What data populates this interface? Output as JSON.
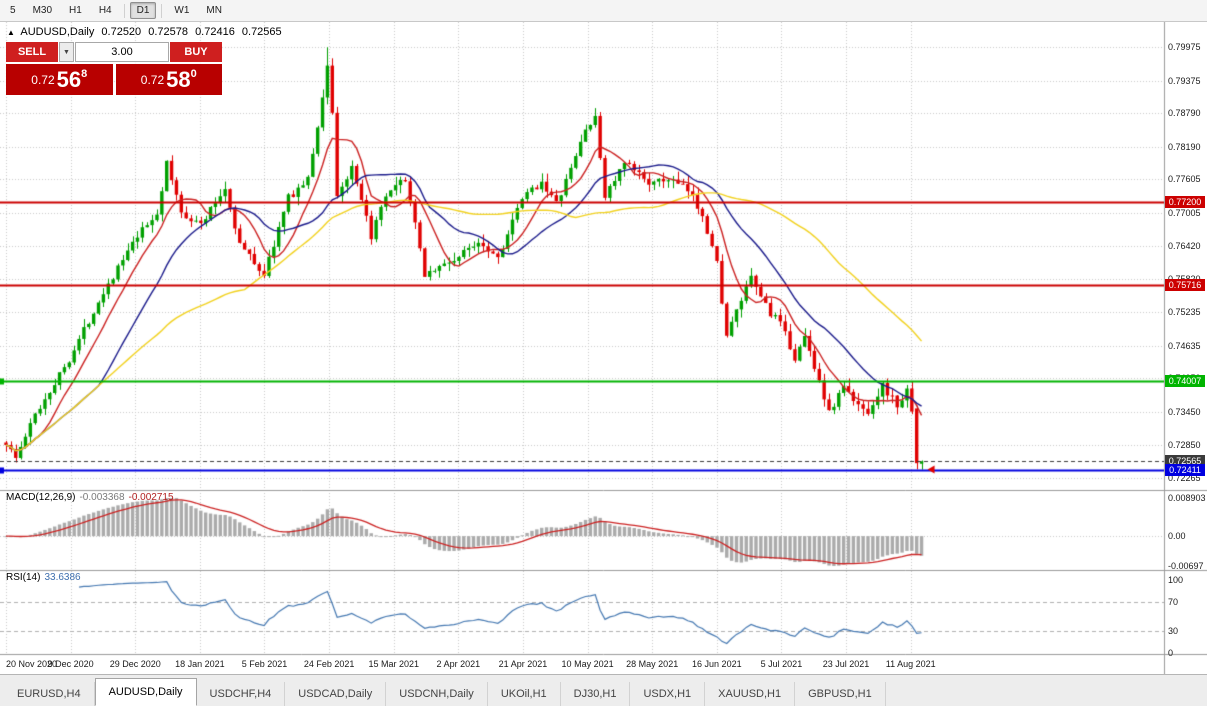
{
  "icons": {
    "expand": "▲",
    "dropdown": "▼"
  },
  "toolbar": {
    "timeframes": [
      "5",
      "M30",
      "H1",
      "H4",
      "D1",
      "W1",
      "MN"
    ],
    "active_timeframe": "D1"
  },
  "chart_header": {
    "symbol": "AUDUSD,Daily",
    "open": "0.72520",
    "high": "0.72578",
    "low": "0.72416",
    "close": "0.72565"
  },
  "trade_panel": {
    "sell_label": "SELL",
    "buy_label": "BUY",
    "volume": "3.00",
    "sell_price_main": "0.72",
    "sell_price_big": "56",
    "sell_price_sup": "8",
    "buy_price_main": "0.72",
    "buy_price_big": "58",
    "buy_price_sup": "0"
  },
  "price_axis": {
    "ticks": [
      "0.79975",
      "0.79375",
      "0.78790",
      "0.78190",
      "0.77605",
      "0.77005",
      "0.76420",
      "0.75820",
      "0.75235",
      "0.74635",
      "0.74050",
      "0.73450",
      "0.72850",
      "0.72265"
    ]
  },
  "macd": {
    "label": "MACD(12,26,9)",
    "value_main": "-0.003368",
    "value_signal": "-0.002715",
    "ticks": [
      "0.008903",
      "0.00",
      "-0.00697"
    ]
  },
  "rsi": {
    "label": "RSI(14)",
    "value": "33.6386",
    "ticks": [
      "100",
      "70",
      "30",
      "0"
    ]
  },
  "time_axis": {
    "labels": [
      "20 Nov 2020",
      "9 Dec 2020",
      "29 Dec 2020",
      "18 Jan 2021",
      "5 Feb 2021",
      "24 Feb 2021",
      "15 Mar 2021",
      "2 Apr 2021",
      "21 Apr 2021",
      "10 May 2021",
      "28 May 2021",
      "16 Jun 2021",
      "5 Jul 2021",
      "23 Jul 2021",
      "11 Aug 2021"
    ]
  },
  "tabs": [
    {
      "label": "EURUSD,H4",
      "active": false
    },
    {
      "label": "AUDUSD,Daily",
      "active": true
    },
    {
      "label": "USDCHF,H4",
      "active": false
    },
    {
      "label": "USDCAD,Daily",
      "active": false
    },
    {
      "label": "USDCNH,Daily",
      "active": false
    },
    {
      "label": "UKOil,H1",
      "active": false
    },
    {
      "label": "DJ30,H1",
      "active": false
    },
    {
      "label": "USDX,H1",
      "active": false
    },
    {
      "label": "XAUUSD,H1",
      "active": false
    },
    {
      "label": "GBPUSD,H1",
      "active": false
    }
  ],
  "chart_data": {
    "type": "candlestick",
    "symbol": "AUDUSD",
    "timeframe": "Daily",
    "last_bar_ohlc": {
      "open": 0.7252,
      "high": 0.72578,
      "low": 0.72416,
      "close": 0.72565
    },
    "ylim": [
      0.72265,
      0.79975
    ],
    "candle_count": 189,
    "price_anchors": [
      [
        0,
        0.729
      ],
      [
        2,
        0.7262
      ],
      [
        6,
        0.734
      ],
      [
        13,
        0.744
      ],
      [
        20,
        0.756
      ],
      [
        27,
        0.7658
      ],
      [
        31,
        0.77
      ],
      [
        33,
        0.7788
      ],
      [
        36,
        0.7702
      ],
      [
        40,
        0.768
      ],
      [
        45,
        0.7745
      ],
      [
        48,
        0.7645
      ],
      [
        53,
        0.759
      ],
      [
        58,
        0.7728
      ],
      [
        62,
        0.776
      ],
      [
        65,
        0.7905
      ],
      [
        66,
        0.7968
      ],
      [
        67,
        0.788
      ],
      [
        68,
        0.7732
      ],
      [
        71,
        0.7778
      ],
      [
        75,
        0.766
      ],
      [
        78,
        0.7728
      ],
      [
        82,
        0.7762
      ],
      [
        86,
        0.7592
      ],
      [
        90,
        0.7608
      ],
      [
        93,
        0.7622
      ],
      [
        97,
        0.7652
      ],
      [
        101,
        0.7622
      ],
      [
        106,
        0.7725
      ],
      [
        110,
        0.7758
      ],
      [
        113,
        0.7716
      ],
      [
        116,
        0.7778
      ],
      [
        119,
        0.7852
      ],
      [
        121,
        0.7868
      ],
      [
        123,
        0.7732
      ],
      [
        127,
        0.7788
      ],
      [
        133,
        0.7752
      ],
      [
        136,
        0.7762
      ],
      [
        140,
        0.774
      ],
      [
        143,
        0.77
      ],
      [
        146,
        0.761
      ],
      [
        148,
        0.748
      ],
      [
        151,
        0.7545
      ],
      [
        153,
        0.7582
      ],
      [
        157,
        0.7522
      ],
      [
        159,
        0.7502
      ],
      [
        162,
        0.7442
      ],
      [
        164,
        0.7478
      ],
      [
        167,
        0.7402
      ],
      [
        169,
        0.7342
      ],
      [
        172,
        0.7392
      ],
      [
        174,
        0.7362
      ],
      [
        177,
        0.7346
      ],
      [
        180,
        0.7392
      ],
      [
        183,
        0.7356
      ],
      [
        185,
        0.738
      ],
      [
        186,
        0.7352
      ],
      [
        187,
        0.7253
      ],
      [
        188,
        0.72565
      ]
    ],
    "last_candles": [
      {
        "o": 0.7351,
        "h": 0.7356,
        "l": 0.7242,
        "c": 0.7253
      },
      {
        "o": 0.7252,
        "h": 0.72578,
        "l": 0.72416,
        "c": 0.72565
      }
    ],
    "high_overrides": [
      [
        66,
        0.7997
      ]
    ],
    "levels": [
      {
        "price": 0.772,
        "label": "0.77200",
        "color": "#cc0000",
        "style": "solid"
      },
      {
        "price": 0.75716,
        "label": "0.75716",
        "color": "#cc0000",
        "style": "solid"
      },
      {
        "price": 0.74007,
        "label": "0.74007",
        "color": "#00b400",
        "style": "solid"
      },
      {
        "price": 0.72565,
        "label": "0.72565",
        "color": "#3a3a3a",
        "style": "dashed"
      },
      {
        "price": 0.72411,
        "label": "0.72411",
        "color": "#0000e0",
        "style": "solid"
      }
    ],
    "moving_averages": [
      {
        "period": 8,
        "color": "#cc2222"
      },
      {
        "period": 20,
        "color": "#1c1c8c"
      },
      {
        "period": 50,
        "color": "#f2d21f"
      }
    ],
    "macd_params": {
      "fast": 12,
      "slow": 26,
      "signal": 9,
      "scale_max": 0.008903,
      "scale_min": -0.00697,
      "last_main": -0.003368,
      "last_signal": -0.002715
    },
    "rsi_params": {
      "period": 14,
      "levels": [
        70,
        30
      ],
      "last": 33.6386
    },
    "colors": {
      "up": "#00a000",
      "down": "#e00000",
      "grid": "#c9c9c9",
      "macd_hist": "#ababab",
      "macd_signal": "#cc2222",
      "rsi_line": "#4679b2"
    }
  }
}
